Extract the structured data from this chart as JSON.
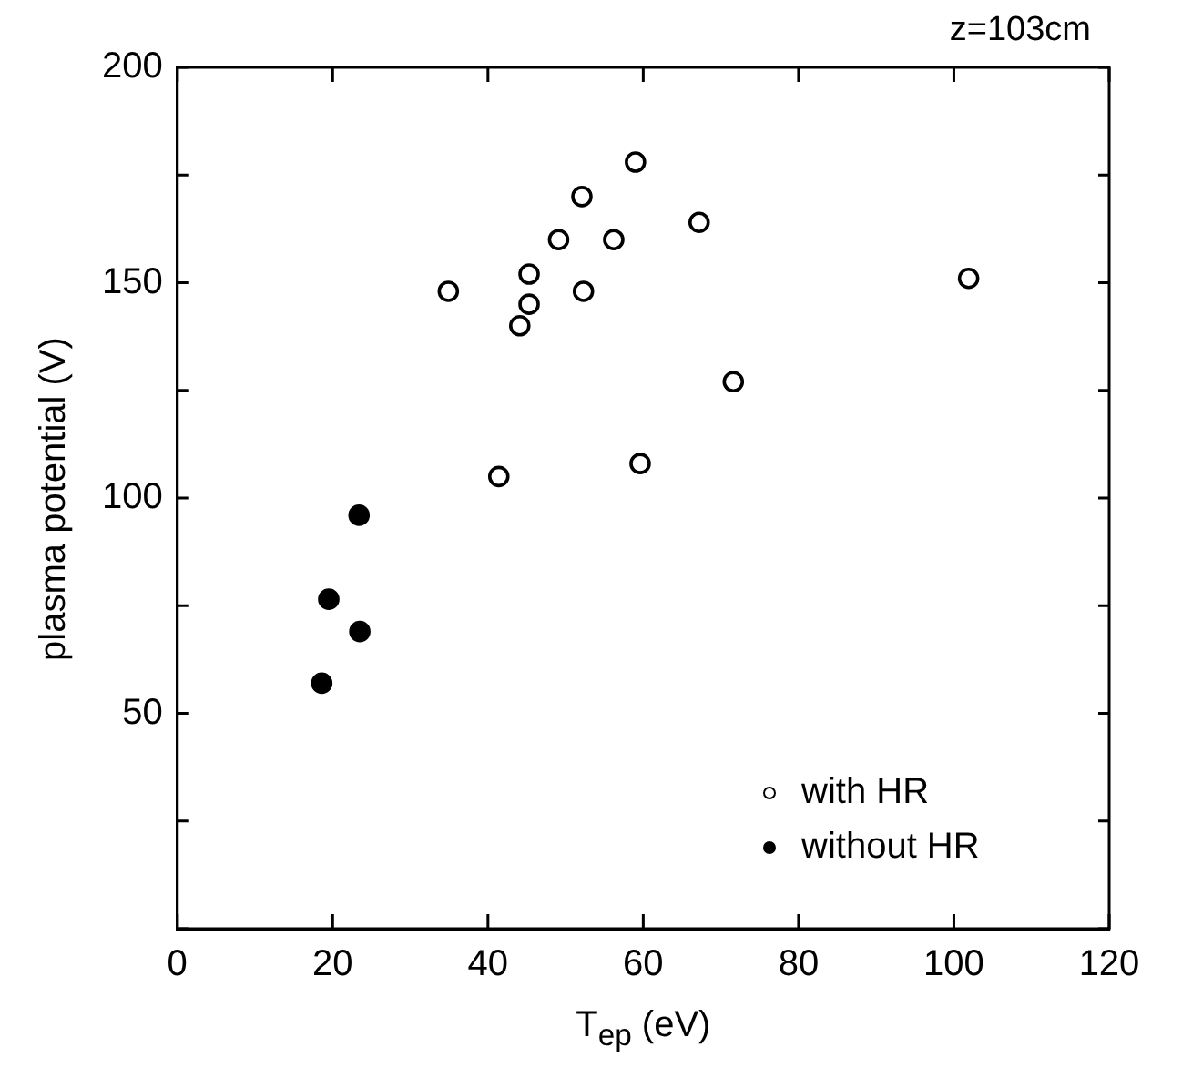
{
  "chart_data": {
    "type": "scatter",
    "xlabel": "T$_{ep}$ (eV)",
    "ylabel": "plasma potential (V)",
    "annotations": [
      "z=103cm"
    ],
    "xlim": [
      0,
      120
    ],
    "xticks": [
      0,
      20,
      40,
      60,
      80,
      100,
      120
    ],
    "ylim": [
      0,
      200
    ],
    "yticks": [
      {
        "value": 0,
        "label": null
      },
      {
        "value": 25,
        "label": null
      },
      50,
      {
        "value": 75,
        "label": null
      },
      100,
      {
        "value": 125,
        "label": null
      },
      150,
      {
        "value": 175,
        "label": null
      },
      200
    ],
    "grid": false,
    "legend": "bottom right",
    "marker": "circle",
    "series": [
      {
        "name": "with HR",
        "color": "#ffffff",
        "x": [
          34.9,
          45.3,
          45.3,
          44.1,
          49.1,
          52.1,
          52.3,
          56.2,
          59.0,
          67.2,
          71.6,
          101.9,
          41.4,
          59.6
        ],
        "values": [
          148,
          152,
          145,
          140,
          160,
          170,
          148,
          160,
          178,
          164,
          127,
          151,
          105,
          108
        ]
      },
      {
        "name": "without HR",
        "color": "#000000",
        "x": [
          23.4,
          19.5,
          23.5,
          18.6
        ],
        "values": [
          96,
          76.5,
          69,
          57
        ]
      }
    ]
  }
}
